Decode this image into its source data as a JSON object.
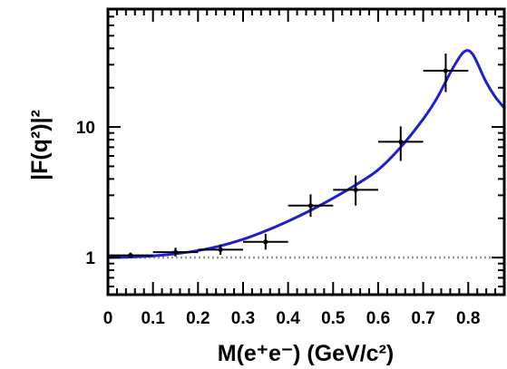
{
  "chart_data": {
    "type": "scatter",
    "xlabel": "M(e⁺e⁻) (GeV/c²)",
    "ylabel": "|F(q²)|²",
    "xlim": [
      0,
      0.88
    ],
    "ylim": [
      0.52,
      80
    ],
    "y_scale": "log",
    "grid": false,
    "x_ticks": [
      "0",
      "0.1",
      "0.2",
      "0.3",
      "0.4",
      "0.5",
      "0.6",
      "0.7",
      "0.8"
    ],
    "y_ticks": [
      "1",
      "10"
    ],
    "series": [
      {
        "kind": "points-with-errors",
        "x": [
          0.05,
          0.15,
          0.25,
          0.35,
          0.45,
          0.55,
          0.65,
          0.75
        ],
        "y": [
          1.04,
          1.1,
          1.15,
          1.32,
          2.5,
          3.3,
          7.7,
          27.0
        ],
        "x_err": [
          0.05,
          0.05,
          0.05,
          0.05,
          0.05,
          0.05,
          0.05,
          0.05
        ],
        "y_err_low": [
          0.05,
          0.08,
          0.1,
          0.17,
          0.45,
          0.8,
          2.2,
          8.5
        ],
        "y_err_high": [
          0.05,
          0.09,
          0.11,
          0.2,
          0.55,
          0.95,
          2.4,
          9.5
        ],
        "color": "#000000"
      },
      {
        "kind": "curve",
        "x": [
          0.0,
          0.05,
          0.1,
          0.15,
          0.2,
          0.25,
          0.3,
          0.35,
          0.4,
          0.45,
          0.5,
          0.55,
          0.6,
          0.65,
          0.7,
          0.73,
          0.76,
          0.78,
          0.79,
          0.8,
          0.81,
          0.82,
          0.84,
          0.86,
          0.88
        ],
        "y": [
          1.0,
          1.01,
          1.03,
          1.07,
          1.13,
          1.23,
          1.38,
          1.6,
          1.9,
          2.3,
          2.85,
          3.6,
          4.7,
          7.0,
          11.5,
          16.5,
          26.0,
          34.0,
          37.5,
          38.5,
          36.0,
          31.0,
          22.0,
          17.0,
          14.0
        ],
        "color": "#1f1fd0"
      },
      {
        "kind": "reference-line",
        "y": 1,
        "style": "dotted",
        "color": "#999999"
      }
    ]
  }
}
